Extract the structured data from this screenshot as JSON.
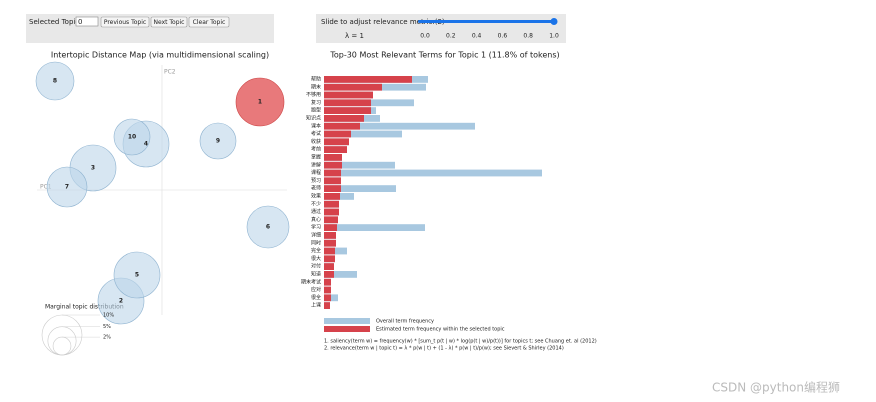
{
  "controls": {
    "topic_label": "Selected Topic:",
    "topic_value": "0",
    "buttons": [
      "Previous Topic",
      "Next Topic",
      "Clear Topic"
    ],
    "slider_label": "Slide to adjust relevance metric:(2)",
    "lambda_label": "λ = 1",
    "lambda": 1,
    "slider_ticks": [
      {
        "value": 0,
        "label": "0.0"
      },
      {
        "value": 0.2,
        "label": "0.2"
      },
      {
        "value": 0.4,
        "label": "0.4"
      },
      {
        "value": 0.6,
        "label": "0.6"
      },
      {
        "value": 0.8,
        "label": "0.8"
      },
      {
        "value": 1,
        "label": "1.0"
      }
    ]
  },
  "chart_data": [
    {
      "type": "scatter",
      "title": "Intertopic Distance Map (via multidimensional scaling)",
      "x_label": "PC1",
      "y_label": "PC2",
      "labels": [
        "1",
        "2",
        "3",
        "4",
        "5",
        "6",
        "7",
        "8",
        "9",
        "10"
      ],
      "x": [
        98,
        -41,
        -69,
        -16,
        -25,
        106,
        -95,
        -107,
        56,
        -30
      ],
      "values": [
        88,
        -111,
        22,
        46,
        -85,
        -37,
        3,
        109,
        49,
        53
      ],
      "sizes": [
        24,
        23,
        23,
        23,
        23,
        21,
        20,
        19,
        18,
        18
      ],
      "selected_color": "#e8797b",
      "color": "#bdd6ea",
      "xlim": [
        -125,
        125
      ],
      "ylim": [
        -125,
        125
      ],
      "size_legend": {
        "title": "Marginal topic distribution",
        "values": [
          2,
          5,
          10
        ],
        "labels": [
          "2%",
          "5%",
          "10%"
        ]
      }
    },
    {
      "type": "bar",
      "title": "Top-30 Most Relevant Terms for Topic 1 (11.8% of tokens)",
      "categories": [
        "帮助",
        "期末",
        "不够用",
        "复习",
        "题型",
        "知识点",
        "课本",
        "考试",
        "收获",
        "考前",
        "掌握",
        "讲解",
        "课程",
        "预习",
        "老师",
        "效果",
        "不少",
        "通过",
        "真心",
        "学习",
        "详细",
        "同时",
        "完全",
        "很大",
        "对付",
        "知道",
        "期末考试",
        "应对",
        "很全",
        "上课"
      ],
      "series": [
        {
          "name": "Overall term frequency",
          "color": "#a8c8e0",
          "values": [
            104,
            102,
            49,
            90,
            52,
            56,
            151,
            78,
            25,
            23,
            18,
            71,
            218,
            17,
            72,
            30,
            15,
            15,
            14,
            101,
            12,
            12,
            23,
            11,
            10,
            33,
            7,
            7,
            14,
            6
          ]
        },
        {
          "name": "Estimated term frequency within the selected topic",
          "color": "#d6424b",
          "values": [
            88,
            58,
            49,
            47,
            47,
            40,
            36,
            27,
            25,
            23,
            18,
            18,
            17,
            17,
            17,
            16,
            15,
            15,
            14,
            13,
            12,
            12,
            11,
            11,
            10,
            10,
            7,
            7,
            7,
            6
          ]
        }
      ],
      "xlim": [
        0,
        220
      ],
      "notes": [
        "1. saliency(term w) = frequency(w) * [sum_t p(t | w) * log(p(t | w)/p(t))] for topics t; see Chuang et. al (2012)",
        "2. relevance(term w | topic t) = λ * p(w | t) + (1 - λ) * p(w | t)/p(w); see Sievert & Shirley (2014)"
      ]
    }
  ],
  "watermark": "CSDN @python编程狮"
}
